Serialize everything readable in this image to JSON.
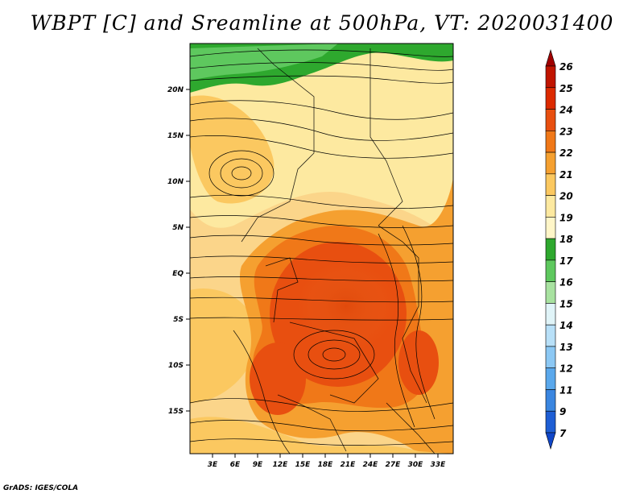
{
  "title": "WBPT [C] and Sreamline at 500hPa, VT: 2020031400",
  "credit": "GrADS: IGES/COLA",
  "map": {
    "lat_labels": [
      "20N",
      "15N",
      "10N",
      "5N",
      "EQ",
      "5S",
      "10S",
      "15S"
    ],
    "lon_labels": [
      "3E",
      "6E",
      "9E",
      "12E",
      "15E",
      "18E",
      "21E",
      "24E",
      "27E",
      "30E",
      "33E"
    ]
  },
  "colorbar": {
    "labels": [
      "26",
      "25",
      "24",
      "23",
      "22",
      "21",
      "20",
      "19",
      "18",
      "17",
      "16",
      "15",
      "14",
      "13",
      "12",
      "11",
      "9",
      "7"
    ],
    "colors": [
      "#a00000",
      "#c01400",
      "#dc2a00",
      "#e84f10",
      "#f07818",
      "#f5a030",
      "#fbc860",
      "#fde9a0",
      "#fff6c8",
      "#2ea82e",
      "#5ec85e",
      "#a8e2a0",
      "#e0f4f8",
      "#b8e0f8",
      "#8cc8f4",
      "#5aa8ec",
      "#3a86e0",
      "#1e5ed4",
      "#1046c8"
    ]
  }
}
